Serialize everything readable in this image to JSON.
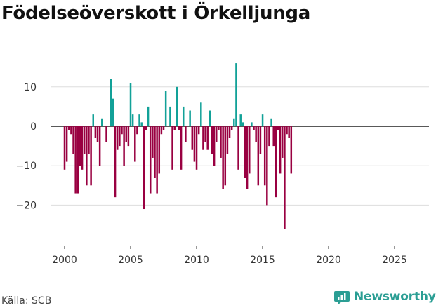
{
  "chart_data": {
    "type": "bar",
    "title": "Födelseöverskott i Örkelljunga",
    "source": "Källa: SCB",
    "brand": "Newsworthy",
    "xlabel": "",
    "ylabel": "",
    "ylim": [
      -28,
      18
    ],
    "yticks": [
      -20,
      -10,
      0,
      10
    ],
    "ytick_labels": [
      "−20",
      "−10",
      "0",
      "10"
    ],
    "xticks": [
      2000,
      2005,
      2010,
      2015,
      2020,
      2025
    ],
    "xtick_labels": [
      "2000",
      "2005",
      "2010",
      "2015",
      "2020",
      "2025"
    ],
    "x_start": 2000.0,
    "x_step": 0.1667,
    "colors": {
      "positive": "#12a198",
      "negative": "#990041",
      "grid": "#dddddd",
      "zero": "#222222"
    },
    "values": [
      -11,
      -9,
      -1,
      -2,
      -7,
      -17,
      -17,
      -10,
      -11,
      -7,
      -15,
      -7,
      -15,
      3,
      -3,
      -4,
      -10,
      2,
      0,
      -4,
      0,
      12,
      7,
      -18,
      -6,
      -5,
      -2,
      -10,
      -4,
      -5,
      11,
      3,
      -9,
      -2,
      3,
      1,
      -21,
      -1,
      5,
      -17,
      -8,
      -13,
      -17,
      -12,
      -2,
      -1,
      9,
      0,
      5,
      -11,
      -1,
      10,
      -1,
      -11,
      5,
      -4,
      0,
      4,
      -6,
      -9,
      -11,
      -2,
      6,
      -6,
      -4,
      -6,
      4,
      -7,
      -10,
      -4,
      -1,
      -8,
      -16,
      -15,
      -7,
      -3,
      -1,
      2,
      16,
      -11,
      3,
      1,
      -13,
      -16,
      -12,
      1,
      -1,
      -4,
      -15,
      -7,
      3,
      -15,
      -20,
      -5,
      2,
      -5,
      -18,
      -1,
      -12,
      -8,
      -26,
      -2,
      -3,
      -12
    ]
  }
}
